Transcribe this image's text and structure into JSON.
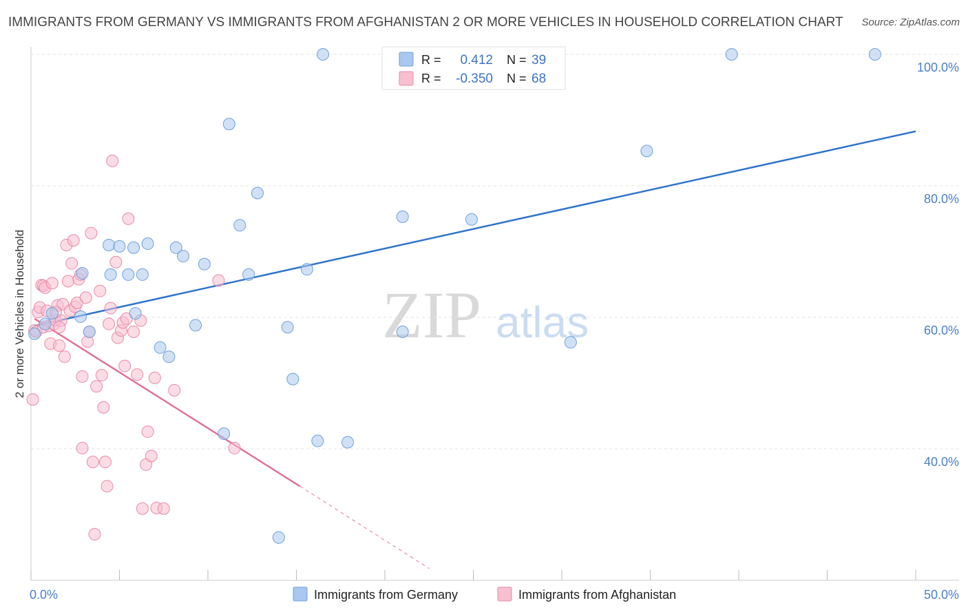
{
  "title": "IMMIGRANTS FROM GERMANY VS IMMIGRANTS FROM AFGHANISTAN 2 OR MORE VEHICLES IN HOUSEHOLD CORRELATION CHART",
  "source": "Source: ZipAtlas.com",
  "watermark": {
    "zip": "ZIP",
    "atlas": "atlas"
  },
  "legend_top": [
    {
      "r_label": "R =",
      "r_value": "0.412",
      "n_label": "N =",
      "n_value": "39",
      "color": "#a9c8ef",
      "stroke": "#6f9fdc"
    },
    {
      "r_label": "R =",
      "r_value": "-0.350",
      "n_label": "N =",
      "n_value": "68",
      "color": "#f7bfd0",
      "stroke": "#e88aa8"
    }
  ],
  "legend_bottom": [
    {
      "label": "Immigrants from Germany",
      "color": "#a9c8ef",
      "stroke": "#6f9fdc"
    },
    {
      "label": "Immigrants from Afghanistan",
      "color": "#f7bfd0",
      "stroke": "#e88aa8"
    }
  ],
  "chart_data": {
    "type": "scatter",
    "title": "IMMIGRANTS FROM GERMANY VS IMMIGRANTS FROM AFGHANISTAN 2 OR MORE VEHICLES IN HOUSEHOLD CORRELATION CHART",
    "xlabel": "",
    "ylabel": "2 or more Vehicles in Household",
    "xlim": [
      0,
      50
    ],
    "ylim": [
      20,
      102
    ],
    "x_tick_labels": [
      "0.0%",
      "50.0%"
    ],
    "y_ticks": [
      40,
      60,
      80,
      100
    ],
    "y_tick_labels": [
      "40.0%",
      "60.0%",
      "80.0%",
      "100.0%"
    ],
    "grid": true,
    "legend_position": "top-center",
    "series": [
      {
        "name": "Immigrants from Germany",
        "color": "#6f9fdc",
        "fill": "#a9c8ef",
        "trend": {
          "x": [
            0.2,
            50
          ],
          "y": [
            58.7,
            88.3
          ]
        },
        "points": [
          [
            0.2,
            57.5
          ],
          [
            0.8,
            59.0
          ],
          [
            1.2,
            60.6
          ],
          [
            2.8,
            60.1
          ],
          [
            2.9,
            66.7
          ],
          [
            3.3,
            57.8
          ],
          [
            4.4,
            71.0
          ],
          [
            4.5,
            66.5
          ],
          [
            5.0,
            70.8
          ],
          [
            5.5,
            66.5
          ],
          [
            5.8,
            70.6
          ],
          [
            5.9,
            60.6
          ],
          [
            6.3,
            66.5
          ],
          [
            6.6,
            71.2
          ],
          [
            7.3,
            55.4
          ],
          [
            7.8,
            54.0
          ],
          [
            8.2,
            70.6
          ],
          [
            8.6,
            69.3
          ],
          [
            9.3,
            58.8
          ],
          [
            9.8,
            68.1
          ],
          [
            10.9,
            42.3
          ],
          [
            11.2,
            89.4
          ],
          [
            11.8,
            74.0
          ],
          [
            12.3,
            66.5
          ],
          [
            12.8,
            78.9
          ],
          [
            14.0,
            26.5
          ],
          [
            14.5,
            58.5
          ],
          [
            14.8,
            50.6
          ],
          [
            15.6,
            67.3
          ],
          [
            16.2,
            41.2
          ],
          [
            16.5,
            100.0
          ],
          [
            17.9,
            41.0
          ],
          [
            21.0,
            57.8
          ],
          [
            21.0,
            75.3
          ],
          [
            24.9,
            74.9
          ],
          [
            30.5,
            56.2
          ],
          [
            34.8,
            85.3
          ],
          [
            39.6,
            100.0
          ],
          [
            47.7,
            100.0
          ]
        ]
      },
      {
        "name": "Immigrants from Afghanistan",
        "color": "#e88aa8",
        "fill": "#f7bfd0",
        "trend": {
          "x": [
            0.2,
            15.2
          ],
          "y": [
            59.8,
            34.3
          ]
        },
        "trend_extension": {
          "x": [
            15.2,
            22.5
          ],
          "y": [
            34.3,
            21.8
          ]
        },
        "points": [
          [
            0.1,
            47.5
          ],
          [
            0.2,
            58.0
          ],
          [
            0.3,
            57.8
          ],
          [
            0.4,
            60.8
          ],
          [
            0.5,
            61.5
          ],
          [
            0.6,
            64.9
          ],
          [
            0.7,
            58.5
          ],
          [
            0.7,
            64.8
          ],
          [
            0.8,
            64.5
          ],
          [
            0.9,
            61.0
          ],
          [
            1.0,
            58.7
          ],
          [
            1.1,
            56.0
          ],
          [
            1.2,
            65.2
          ],
          [
            1.3,
            59.0
          ],
          [
            1.4,
            59.6
          ],
          [
            1.5,
            61.8
          ],
          [
            1.6,
            55.7
          ],
          [
            1.7,
            59.5
          ],
          [
            1.8,
            62.0
          ],
          [
            1.9,
            54.0
          ],
          [
            1.4,
            60.8
          ],
          [
            1.6,
            58.5
          ],
          [
            2.0,
            71.0
          ],
          [
            2.1,
            65.5
          ],
          [
            2.2,
            61.0
          ],
          [
            2.3,
            68.2
          ],
          [
            2.4,
            71.7
          ],
          [
            2.5,
            61.6
          ],
          [
            2.6,
            62.2
          ],
          [
            2.7,
            65.8
          ],
          [
            2.8,
            66.5
          ],
          [
            2.9,
            51.0
          ],
          [
            2.9,
            40.1
          ],
          [
            3.1,
            63.0
          ],
          [
            3.2,
            56.3
          ],
          [
            3.3,
            57.8
          ],
          [
            3.4,
            72.8
          ],
          [
            3.5,
            38.0
          ],
          [
            3.6,
            27.0
          ],
          [
            3.7,
            49.5
          ],
          [
            3.9,
            64.0
          ],
          [
            4.0,
            51.2
          ],
          [
            4.1,
            46.3
          ],
          [
            4.2,
            38.0
          ],
          [
            4.3,
            34.3
          ],
          [
            4.4,
            59.0
          ],
          [
            4.5,
            61.4
          ],
          [
            4.6,
            83.8
          ],
          [
            4.8,
            68.4
          ],
          [
            4.9,
            56.9
          ],
          [
            5.1,
            58.0
          ],
          [
            5.2,
            59.2
          ],
          [
            5.3,
            52.6
          ],
          [
            5.4,
            59.8
          ],
          [
            5.5,
            75.0
          ],
          [
            5.8,
            57.8
          ],
          [
            6.0,
            51.3
          ],
          [
            6.2,
            59.5
          ],
          [
            6.3,
            30.9
          ],
          [
            6.5,
            37.6
          ],
          [
            6.6,
            42.6
          ],
          [
            6.8,
            38.9
          ],
          [
            7.0,
            50.8
          ],
          [
            7.1,
            31.0
          ],
          [
            7.5,
            30.9
          ],
          [
            8.1,
            48.9
          ],
          [
            10.6,
            65.6
          ],
          [
            11.5,
            40.1
          ]
        ]
      }
    ]
  }
}
